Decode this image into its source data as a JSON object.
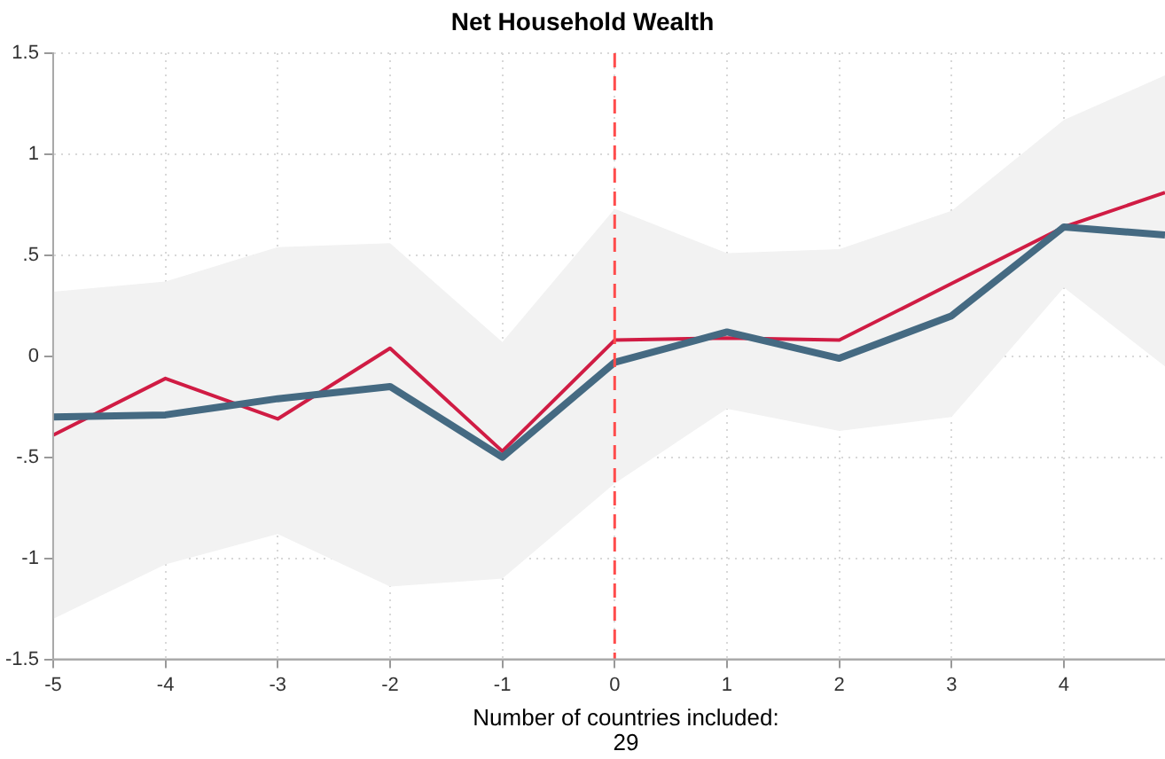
{
  "chart_data": {
    "type": "line",
    "title": "Net Household Wealth",
    "x": [
      -5,
      -4,
      -3,
      -2,
      -1,
      0,
      1,
      2,
      3,
      4,
      4.9
    ],
    "series": [
      {
        "name": null,
        "color": "#d01c44",
        "values": [
          -0.39,
          -0.11,
          -0.31,
          0.04,
          -0.47,
          0.08,
          0.09,
          0.08,
          0.36,
          0.64,
          0.81
        ]
      },
      {
        "name": null,
        "color": "#456a82",
        "values": [
          -0.3,
          -0.29,
          -0.21,
          -0.15,
          -0.5,
          -0.03,
          0.12,
          -0.01,
          0.2,
          0.64,
          0.6
        ],
        "lower": [
          -1.3,
          -1.03,
          -0.88,
          -1.14,
          -1.1,
          -0.63,
          -0.26,
          -0.37,
          -0.3,
          0.34,
          -0.05
        ],
        "upper": [
          0.32,
          0.37,
          0.54,
          0.56,
          0.07,
          0.73,
          0.51,
          0.53,
          0.72,
          1.17,
          1.39
        ]
      }
    ],
    "xlim": [
      -5,
      4.9
    ],
    "xticks": [
      -5,
      -4,
      -3,
      -2,
      -1,
      0,
      1,
      2,
      3,
      4
    ],
    "ylim": [
      -1.5,
      1.5
    ],
    "yticks": [
      -1.5,
      -1,
      {
        "value": -0.5,
        "label": "-.5"
      },
      0,
      {
        "value": 0.5,
        "label": ".5"
      },
      1,
      1.5
    ],
    "ref_lines": [
      {
        "axis": "x",
        "value": 0,
        "color": "#ff4c4c",
        "line_style": "dashed"
      }
    ],
    "grid": true,
    "legend": false,
    "marker": "none",
    "line_style": "solid",
    "annotations": [
      "Number of countries included:\n29"
    ]
  }
}
